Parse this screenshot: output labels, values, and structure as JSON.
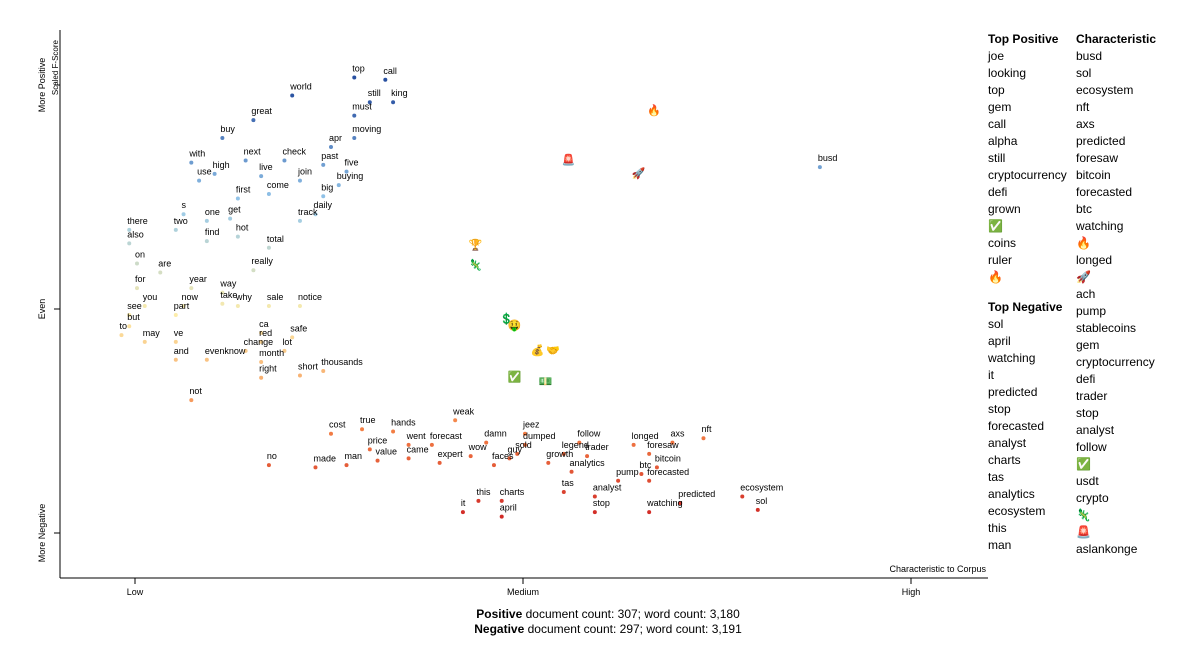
{
  "footer": {
    "positive_label": "Positive",
    "positive_rest": " document count: 307; word count: 3,180",
    "negative_label": "Negative",
    "negative_rest": " document count: 297; word count: 3,191"
  },
  "lists": {
    "top_positive": {
      "title": "Top Positive",
      "items": [
        "joe",
        "looking",
        "top",
        "gem",
        "call",
        "alpha",
        "still",
        "cryptocurrency",
        "defi",
        "grown",
        "✅",
        "coins",
        "ruler",
        "🔥"
      ]
    },
    "top_negative": {
      "title": "Top Negative",
      "items": [
        "sol",
        "april",
        "watching",
        "it",
        "predicted",
        "stop",
        "forecasted",
        "analyst",
        "charts",
        "tas",
        "analytics",
        "ecosystem",
        "this",
        "man"
      ]
    },
    "characteristic": {
      "title": "Characteristic",
      "items": [
        "busd",
        "sol",
        "ecosystem",
        "nft",
        "axs",
        "predicted",
        "foresaw",
        "bitcoin",
        "forecasted",
        "btc",
        "watching",
        "🔥",
        "longed",
        "🚀",
        "ach",
        "pump",
        "stablecoins",
        "gem",
        "cryptocurrency",
        "defi",
        "trader",
        "stop",
        "analyst",
        "follow",
        "✅",
        "usdt",
        "crypto",
        "🦎",
        "🚨",
        "aslankonge"
      ]
    }
  },
  "chart_data": {
    "type": "scatter",
    "xlabel": "Characteristic to Corpus",
    "ylabel": "Scaled F-Score",
    "x_ticks": [
      "Low",
      "Medium",
      "High"
    ],
    "y_ticks": [
      "More Negative",
      "Even",
      "More Positive"
    ],
    "xlim": [
      0,
      1
    ],
    "ylim": [
      0,
      1
    ],
    "grid": false,
    "labels": [
      {
        "t": "world",
        "x": 0.2,
        "y": 0.98
      },
      {
        "t": "top",
        "x": 0.28,
        "y": 1.06
      },
      {
        "t": "call",
        "x": 0.32,
        "y": 1.05
      },
      {
        "t": "still",
        "x": 0.3,
        "y": 0.95
      },
      {
        "t": "king",
        "x": 0.33,
        "y": 0.95
      },
      {
        "t": "must",
        "x": 0.28,
        "y": 0.89
      },
      {
        "t": "great",
        "x": 0.15,
        "y": 0.87
      },
      {
        "t": "moving",
        "x": 0.28,
        "y": 0.79
      },
      {
        "t": "buy",
        "x": 0.11,
        "y": 0.79
      },
      {
        "t": "apr",
        "x": 0.25,
        "y": 0.75
      },
      {
        "t": "with",
        "x": 0.07,
        "y": 0.68
      },
      {
        "t": "next",
        "x": 0.14,
        "y": 0.69
      },
      {
        "t": "check",
        "x": 0.19,
        "y": 0.69
      },
      {
        "t": "past",
        "x": 0.24,
        "y": 0.67
      },
      {
        "t": "high",
        "x": 0.1,
        "y": 0.63
      },
      {
        "t": "live",
        "x": 0.16,
        "y": 0.62
      },
      {
        "t": "five",
        "x": 0.27,
        "y": 0.64
      },
      {
        "t": "use",
        "x": 0.08,
        "y": 0.6
      },
      {
        "t": "join",
        "x": 0.21,
        "y": 0.6
      },
      {
        "t": "buying",
        "x": 0.26,
        "y": 0.58
      },
      {
        "t": "first",
        "x": 0.13,
        "y": 0.52
      },
      {
        "t": "come",
        "x": 0.17,
        "y": 0.54
      },
      {
        "t": "big",
        "x": 0.24,
        "y": 0.53
      },
      {
        "t": "s",
        "x": 0.06,
        "y": 0.45
      },
      {
        "t": "one",
        "x": 0.09,
        "y": 0.42
      },
      {
        "t": "get",
        "x": 0.12,
        "y": 0.43
      },
      {
        "t": "track",
        "x": 0.21,
        "y": 0.42
      },
      {
        "t": "daily",
        "x": 0.23,
        "y": 0.45
      },
      {
        "t": "there",
        "x": -0.01,
        "y": 0.38
      },
      {
        "t": "two",
        "x": 0.05,
        "y": 0.38
      },
      {
        "t": "hot",
        "x": 0.13,
        "y": 0.35
      },
      {
        "t": "also",
        "x": -0.01,
        "y": 0.32
      },
      {
        "t": "find",
        "x": 0.09,
        "y": 0.33
      },
      {
        "t": "total",
        "x": 0.17,
        "y": 0.3
      },
      {
        "t": "on",
        "x": 0.0,
        "y": 0.23
      },
      {
        "t": "are",
        "x": 0.03,
        "y": 0.19
      },
      {
        "t": "really",
        "x": 0.15,
        "y": 0.2
      },
      {
        "t": "for",
        "x": 0.0,
        "y": 0.12
      },
      {
        "t": "year",
        "x": 0.07,
        "y": 0.12
      },
      {
        "t": "way",
        "x": 0.11,
        "y": 0.1
      },
      {
        "t": "you",
        "x": 0.01,
        "y": 0.04
      },
      {
        "t": "now",
        "x": 0.06,
        "y": 0.04
      },
      {
        "t": "take",
        "x": 0.11,
        "y": 0.05
      },
      {
        "t": "why",
        "x": 0.13,
        "y": 0.04
      },
      {
        "t": "sale",
        "x": 0.17,
        "y": 0.04
      },
      {
        "t": "notice",
        "x": 0.21,
        "y": 0.04
      },
      {
        "t": "see",
        "x": -0.01,
        "y": 0.0
      },
      {
        "t": "part",
        "x": 0.05,
        "y": 0.0
      },
      {
        "t": "but",
        "x": -0.01,
        "y": -0.05
      },
      {
        "t": "ca",
        "x": 0.16,
        "y": -0.08
      },
      {
        "t": "to",
        "x": -0.02,
        "y": -0.09
      },
      {
        "t": "may",
        "x": 0.01,
        "y": -0.12
      },
      {
        "t": "ve",
        "x": 0.05,
        "y": -0.12
      },
      {
        "t": "red",
        "x": 0.16,
        "y": -0.12
      },
      {
        "t": "safe",
        "x": 0.2,
        "y": -0.1
      },
      {
        "t": "change",
        "x": 0.14,
        "y": -0.16
      },
      {
        "t": "lot",
        "x": 0.19,
        "y": -0.16
      },
      {
        "t": "and",
        "x": 0.05,
        "y": -0.2
      },
      {
        "t": "evenknow",
        "x": 0.09,
        "y": -0.2
      },
      {
        "t": "month",
        "x": 0.16,
        "y": -0.21
      },
      {
        "t": "right",
        "x": 0.16,
        "y": -0.28
      },
      {
        "t": "short",
        "x": 0.21,
        "y": -0.27
      },
      {
        "t": "thousands",
        "x": 0.24,
        "y": -0.25
      },
      {
        "t": "not",
        "x": 0.07,
        "y": -0.38
      },
      {
        "t": "no",
        "x": 0.17,
        "y": -0.67
      },
      {
        "t": "made",
        "x": 0.23,
        "y": -0.68
      },
      {
        "t": "man",
        "x": 0.27,
        "y": -0.67
      },
      {
        "t": "cost",
        "x": 0.25,
        "y": -0.53
      },
      {
        "t": "true",
        "x": 0.29,
        "y": -0.51
      },
      {
        "t": "hands",
        "x": 0.33,
        "y": -0.52
      },
      {
        "t": "price",
        "x": 0.3,
        "y": -0.6
      },
      {
        "t": "value",
        "x": 0.31,
        "y": -0.65
      },
      {
        "t": "went",
        "x": 0.35,
        "y": -0.58
      },
      {
        "t": "came",
        "x": 0.35,
        "y": -0.64
      },
      {
        "t": "forecast",
        "x": 0.38,
        "y": -0.58
      },
      {
        "t": "expert",
        "x": 0.39,
        "y": -0.66
      },
      {
        "t": "damn",
        "x": 0.45,
        "y": -0.57
      },
      {
        "t": "wow",
        "x": 0.43,
        "y": -0.63
      },
      {
        "t": "faces",
        "x": 0.46,
        "y": -0.67
      },
      {
        "t": "guy",
        "x": 0.48,
        "y": -0.64
      },
      {
        "t": "sold",
        "x": 0.49,
        "y": -0.62
      },
      {
        "t": "jeez",
        "x": 0.5,
        "y": -0.53
      },
      {
        "t": "dumped",
        "x": 0.5,
        "y": -0.58
      },
      {
        "t": "growth",
        "x": 0.53,
        "y": -0.66
      },
      {
        "t": "weak",
        "x": 0.41,
        "y": -0.47
      },
      {
        "t": "this",
        "x": 0.44,
        "y": -0.83
      },
      {
        "t": "charts",
        "x": 0.47,
        "y": -0.83
      },
      {
        "t": "it",
        "x": 0.42,
        "y": -0.88
      },
      {
        "t": "april",
        "x": 0.47,
        "y": -0.9
      },
      {
        "t": "follow",
        "x": 0.57,
        "y": -0.57
      },
      {
        "t": "legend",
        "x": 0.55,
        "y": -0.62
      },
      {
        "t": "trader",
        "x": 0.58,
        "y": -0.63
      },
      {
        "t": "analytics",
        "x": 0.56,
        "y": -0.7
      },
      {
        "t": "tas",
        "x": 0.55,
        "y": -0.79
      },
      {
        "t": "analyst",
        "x": 0.59,
        "y": -0.81
      },
      {
        "t": "stop",
        "x": 0.59,
        "y": -0.88
      },
      {
        "t": "pump",
        "x": 0.62,
        "y": -0.74
      },
      {
        "t": "forecasted",
        "x": 0.66,
        "y": -0.74
      },
      {
        "t": "btc",
        "x": 0.65,
        "y": -0.71
      },
      {
        "t": "bitcoin",
        "x": 0.67,
        "y": -0.68
      },
      {
        "t": "longed",
        "x": 0.64,
        "y": -0.58
      },
      {
        "t": "foresaw",
        "x": 0.66,
        "y": -0.62
      },
      {
        "t": "axs",
        "x": 0.69,
        "y": -0.57
      },
      {
        "t": "nft",
        "x": 0.73,
        "y": -0.55
      },
      {
        "t": "predicted",
        "x": 0.7,
        "y": -0.84
      },
      {
        "t": "watching",
        "x": 0.66,
        "y": -0.88
      },
      {
        "t": "ecosystem",
        "x": 0.78,
        "y": -0.81
      },
      {
        "t": "sol",
        "x": 0.8,
        "y": -0.87
      },
      {
        "t": "busd",
        "x": 0.88,
        "y": 0.66
      }
    ],
    "icons": [
      {
        "t": "🔥",
        "x": 0.66,
        "y": 0.87
      },
      {
        "t": "🚨",
        "x": 0.55,
        "y": 0.65
      },
      {
        "t": "🚀",
        "x": 0.64,
        "y": 0.59
      },
      {
        "t": "🏆",
        "x": 0.43,
        "y": 0.27
      },
      {
        "t": "🦎",
        "x": 0.43,
        "y": 0.18
      },
      {
        "t": "💲",
        "x": 0.47,
        "y": -0.06
      },
      {
        "t": "🤑",
        "x": 0.48,
        "y": -0.09
      },
      {
        "t": "✅",
        "x": 0.48,
        "y": -0.32
      },
      {
        "t": "🤝",
        "x": 0.53,
        "y": -0.2
      },
      {
        "t": "💰",
        "x": 0.51,
        "y": -0.2
      },
      {
        "t": "💵",
        "x": 0.52,
        "y": -0.34
      }
    ]
  }
}
